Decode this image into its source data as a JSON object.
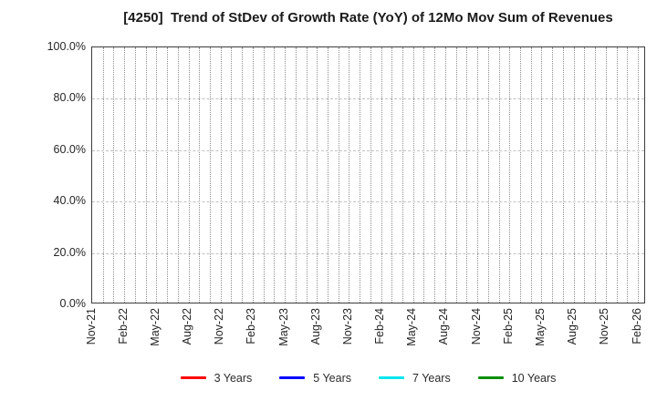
{
  "chart_data": {
    "type": "line",
    "title": "[4250]  Trend of StDev of Growth Rate (YoY) of 12Mo Mov Sum of Revenues",
    "x_axis": {
      "tick_labels": [
        "Nov-21",
        "Feb-22",
        "May-22",
        "Aug-22",
        "Nov-22",
        "Feb-23",
        "May-23",
        "Aug-23",
        "Nov-23",
        "Feb-24",
        "May-24",
        "Aug-24",
        "Nov-24",
        "Feb-25",
        "May-25",
        "Aug-25",
        "Nov-25",
        "Feb-26"
      ],
      "months_between_labeled_ticks": 3,
      "minor_grid": "monthly"
    },
    "y_axis": {
      "min": 0,
      "max": 100,
      "tick_values": [
        0,
        20,
        40,
        60,
        80,
        100
      ],
      "tick_labels": [
        "0.0%",
        "20.0%",
        "40.0%",
        "60.0%",
        "80.0%",
        "100.0%"
      ]
    },
    "grid": true,
    "legend_position": "bottom",
    "series": [
      {
        "name": "3 Years",
        "color": "#FF0000",
        "values": []
      },
      {
        "name": "5 Years",
        "color": "#0000FF",
        "values": []
      },
      {
        "name": "7 Years",
        "color": "#00E5EE",
        "values": []
      },
      {
        "name": "10 Years",
        "color": "#0A8F0A",
        "values": []
      }
    ]
  }
}
